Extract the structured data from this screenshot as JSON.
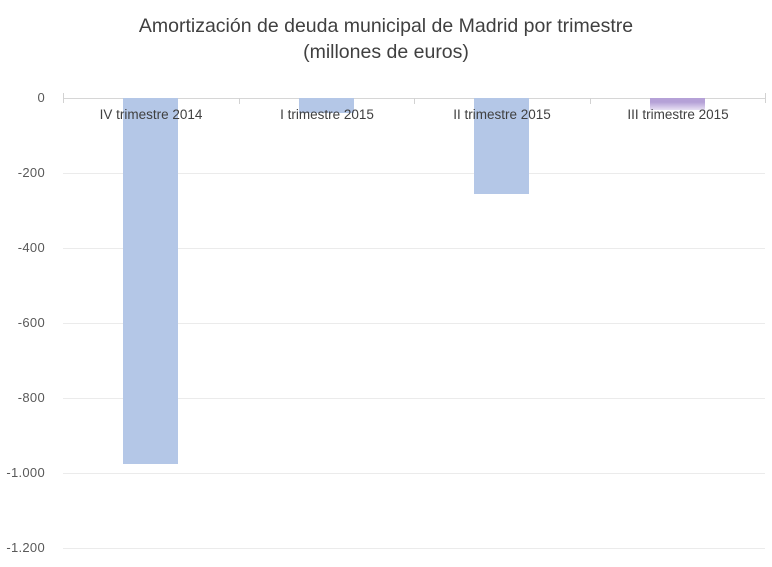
{
  "chart_data": {
    "type": "bar",
    "title": "Amortización de deuda municipal de Madrid por trimestre",
    "subtitle": "(millones de euros)",
    "categories": [
      "IV trimestre 2014",
      "I trimestre 2015",
      "II trimestre 2015",
      "III trimestre 2015"
    ],
    "values": [
      -975,
      -40,
      -255,
      -33
    ],
    "ylabel": "",
    "xlabel": "",
    "ylim": [
      -1200,
      0
    ],
    "yticks": [
      0,
      -200,
      -400,
      -600,
      -800,
      -1000,
      -1200
    ],
    "ytick_labels": [
      "0",
      "-200",
      "-400",
      "-600",
      "-800",
      "-1.000",
      "-1.200"
    ],
    "grid": true,
    "legend": false,
    "highlight_bar_index": 3,
    "colors": {
      "bar_default": "#b4c7e7",
      "bar_highlight_top": "#b5a1d7",
      "bar_highlight_bottom": "#e8e1f4",
      "title_text": "#404040",
      "axis_text": "#595959",
      "category_text": "#404040",
      "gridline": "#ebebeb",
      "axis_line": "#d6d6d6",
      "background": "#ffffff"
    }
  }
}
